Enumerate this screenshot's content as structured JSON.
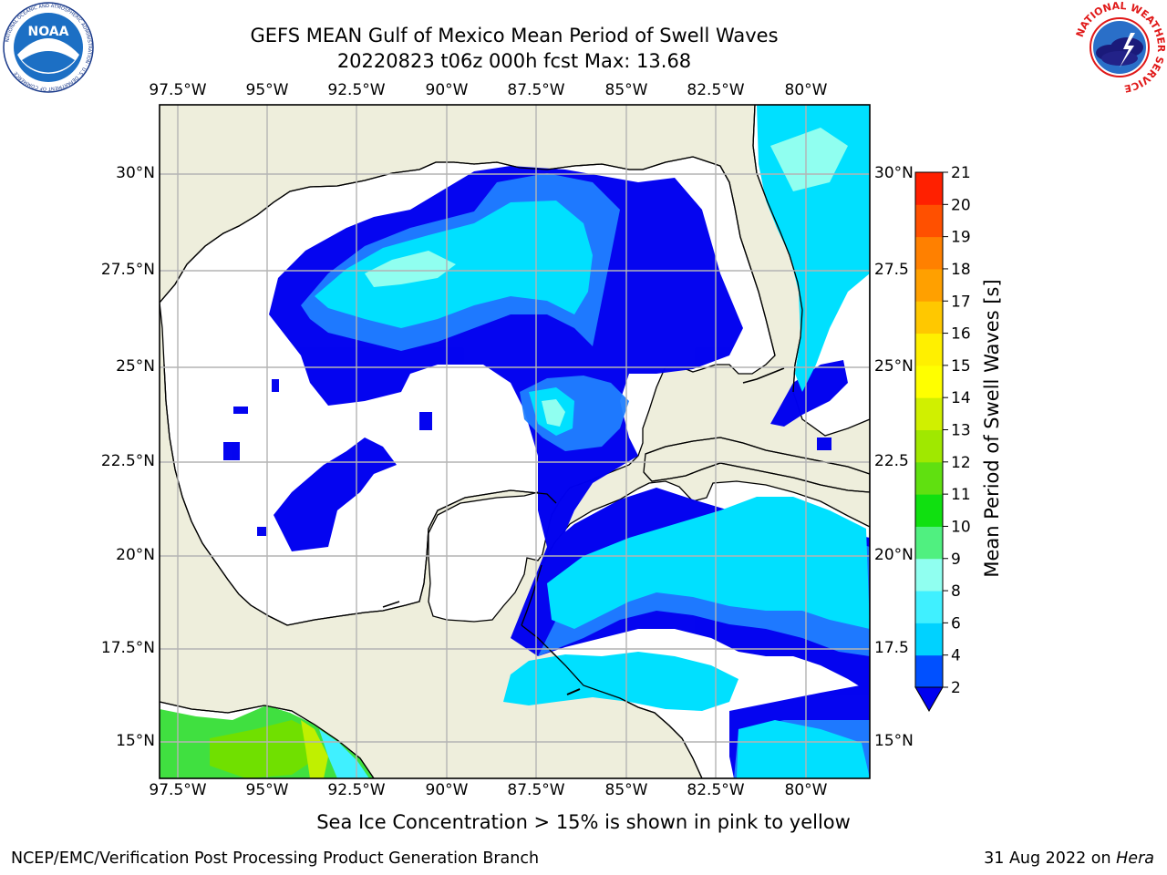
{
  "header": {
    "title_line1": "GEFS MEAN Gulf of Mexico Mean Period of Swell Waves",
    "title_line2": "20220823 t06z 000h fcst   Max: 13.68"
  },
  "logos": {
    "left_text": "NOAA",
    "left_ring_text": "NATIONAL OCEANIC AND ATMOSPHERIC ADMINISTRATION · U.S. DEPARTMENT OF COMMERCE",
    "right_ring_text": "NATIONAL WEATHER SERVICE"
  },
  "map": {
    "lon_labels": [
      "97.5°W",
      "95°W",
      "92.5°W",
      "90°W",
      "87.5°W",
      "85°W",
      "82.5°W",
      "80°W"
    ],
    "lat_labels": [
      "30°N",
      "27.5°N",
      "25°N",
      "22.5°N",
      "20°N",
      "17.5°N",
      "15°N"
    ],
    "lat_labels_right": [
      "30°N",
      "27.5",
      "25°N",
      "22.5",
      "20°N",
      "17.5",
      "15°N"
    ],
    "colors": {
      "land": "#eeeedc",
      "grid": "#b4b4b4",
      "coast": "#000000"
    }
  },
  "colorbar": {
    "label": "Mean Period of Swell Waves [s]",
    "ticks": [
      "2",
      "4",
      "6",
      "8",
      "9",
      "10",
      "11",
      "12",
      "13",
      "14",
      "15",
      "16",
      "17",
      "18",
      "19",
      "20",
      "21"
    ],
    "colors": [
      "#0050ff",
      "#00d2ff",
      "#40f0ff",
      "#90fff0",
      "#50f080",
      "#10e010",
      "#60e010",
      "#a0e800",
      "#d0f000",
      "#ffff00",
      "#fff000",
      "#ffc800",
      "#ffa000",
      "#ff8000",
      "#ff5000",
      "#ff2000"
    ],
    "extend_color": "#0000f0"
  },
  "caption": "Sea Ice Concentration > 15% is shown in pink to yellow",
  "footer": {
    "left": "NCEP/EMC/Verification Post Processing Product Generation Branch",
    "right_prefix": "31 Aug 2022 on ",
    "right_italic": "Hera"
  }
}
